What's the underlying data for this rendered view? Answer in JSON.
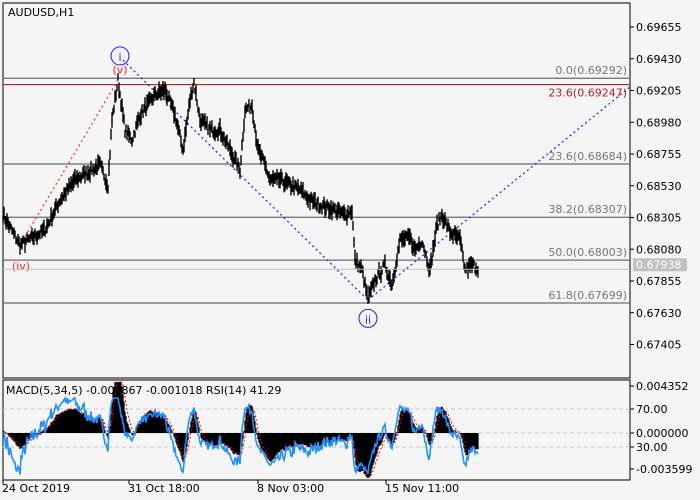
{
  "chart_data": {
    "type": "line",
    "title": "AUDUSD,H1",
    "price_axis": {
      "ticks": [
        "0.69655",
        "0.69430",
        "0.69205",
        "0.68980",
        "0.68755",
        "0.68530",
        "0.68305",
        "0.68080",
        "0.67855",
        "0.67630",
        "0.67405"
      ],
      "range": [
        0.6724,
        0.6974
      ]
    },
    "time_axis": {
      "ticks": [
        "24 Oct 2019",
        "31 Oct 18:00",
        "8 Nov 03:00",
        "15 Nov 11:00"
      ]
    },
    "current_price": "0.67938",
    "price_series": {
      "bars": [
        0,
        17,
        42,
        57,
        72,
        97,
        105,
        109,
        115,
        122,
        129,
        137,
        152,
        162,
        172,
        180,
        187,
        191,
        197,
        207,
        217,
        227,
        237,
        242,
        249,
        255,
        262,
        267,
        277,
        287,
        297,
        307,
        317,
        332,
        342,
        349,
        352,
        359,
        365,
        372,
        382,
        389,
        397,
        407,
        412,
        419,
        427,
        434,
        439,
        447,
        457,
        462,
        469,
        475
      ],
      "prices": [
        0.68323,
        0.6811,
        0.68216,
        0.68429,
        0.68571,
        0.68677,
        0.68535,
        0.68996,
        0.69279,
        0.68925,
        0.68854,
        0.69031,
        0.69173,
        0.69209,
        0.69031,
        0.68783,
        0.69138,
        0.69265,
        0.68996,
        0.68925,
        0.68925,
        0.68783,
        0.68642,
        0.69067,
        0.69102,
        0.68783,
        0.68677,
        0.68571,
        0.68571,
        0.68535,
        0.685,
        0.68429,
        0.68394,
        0.68358,
        0.68323,
        0.68358,
        0.68004,
        0.67933,
        0.6772,
        0.67862,
        0.67968,
        0.67827,
        0.68146,
        0.6816,
        0.68075,
        0.68146,
        0.67933,
        0.68252,
        0.68323,
        0.68202,
        0.68146,
        0.67933,
        0.67968,
        0.67947
      ]
    },
    "fibonacci": [
      {
        "label": "0.0(0.69292)",
        "price": 0.69292,
        "color": "#6b6b6b"
      },
      {
        "label": "23.6(0.69247)",
        "price": 0.69247,
        "color": "#b22222"
      },
      {
        "label": "23.6(0.68684)",
        "price": 0.68684,
        "color": "#6b6b6b"
      },
      {
        "label": "38.2(0.68307)",
        "price": 0.68307,
        "color": "#6b6b6b"
      },
      {
        "label": "50.0(0.68003)",
        "price": 0.68003,
        "color": "#6b6b6b"
      },
      {
        "label": "61.8(0.67699)",
        "price": 0.67699,
        "color": "#6b6b6b"
      }
    ],
    "wave_labels": [
      {
        "text": "i",
        "circled": true,
        "color": "#1a1aff",
        "bar": 117,
        "price": 0.6945
      },
      {
        "text": "(v)",
        "circled": false,
        "color": "#ff2020",
        "bar": 117,
        "price": 0.6936
      },
      {
        "text": "(iv)",
        "circled": false,
        "color": "#ff2020",
        "bar": 18,
        "price": 0.6797
      },
      {
        "text": "ii",
        "circled": true,
        "color": "#1a1aff",
        "bar": 365,
        "price": 0.6759
      }
    ],
    "indicator": {
      "label": "MACD(5,34,5) -0.000867 -0.001018 RSI(14) 41.29",
      "ticks": [
        "0.004352",
        "70.00",
        "0.000000",
        "30.00",
        "-0.003599"
      ],
      "macd_range": [
        -0.003599,
        0.004352
      ],
      "rsi_levels": [
        70,
        30
      ]
    },
    "colors": {
      "price": "#000000",
      "rsi": "#1e90ff",
      "signal": "#ff0000",
      "fib_red": "#b22222",
      "wave_blue": "#1a1aff",
      "wave_red": "#ff2020"
    }
  }
}
